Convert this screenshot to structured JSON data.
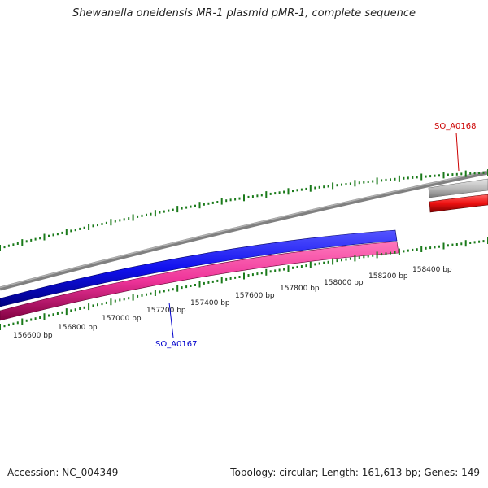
{
  "header": {
    "title": "Shewanella oneidensis MR-1 plasmid pMR-1, complete sequence"
  },
  "footer": {
    "accession": "Accession: NC_004349",
    "summary": "Topology: circular; Length: 161,613 bp; Genes: 149"
  },
  "ruler": {
    "labels": [
      "156600 bp",
      "156800 bp",
      "157000 bp",
      "157200 bp",
      "157400 bp",
      "157600 bp",
      "157800 bp",
      "158000 bp",
      "158200 bp",
      "158400 bp"
    ]
  },
  "genes": [
    {
      "name": "SO_A0167",
      "strand": "minus",
      "label_color": "#0000cc",
      "fill": "#1010ee"
    },
    {
      "name": "SO_A0168",
      "strand": "plus",
      "label_color": "#cc0000",
      "fill": "#ee1111"
    }
  ],
  "colors": {
    "tick": "#1a7a1a",
    "backbone": "#808080",
    "minus_track": "#1010ee",
    "cds_track": "#ee3399",
    "grey_cds": "#bbbbbb",
    "red_cds": "#ee1111"
  }
}
